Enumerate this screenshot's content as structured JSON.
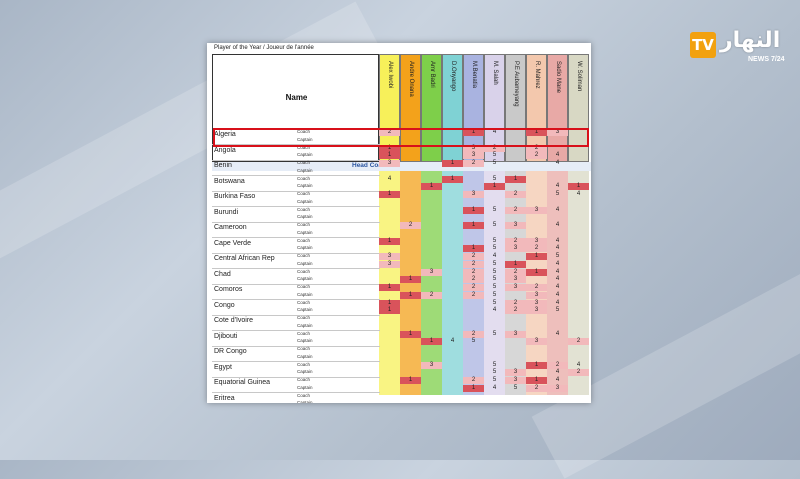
{
  "broadcast": {
    "logo_badge": "TV",
    "logo_arabic": "النهار",
    "logo_sub": "NEWS 7/24"
  },
  "document": {
    "title": "Player of the Year / Joueur de l'année",
    "name_header": "Name",
    "section_label": "Head Coaches",
    "candidates": [
      {
        "name": "Alex Iwobi",
        "color": "#f7f05a"
      },
      {
        "name": "Andre Onana",
        "color": "#f3a21b"
      },
      {
        "name": "Amr Badri",
        "color": "#7ecf4a"
      },
      {
        "name": "D.Onyango",
        "color": "#7fd2d4"
      },
      {
        "name": "M.Benatia",
        "color": "#a9b3e0"
      },
      {
        "name": "M. Salah",
        "color": "#d9d2ea"
      },
      {
        "name": "P.E Aubameyang",
        "color": "#c9c9c9"
      },
      {
        "name": "R. Mahrez",
        "color": "#f3c8ad"
      },
      {
        "name": "Sadio Mane",
        "color": "#e8a9a6"
      },
      {
        "name": "W. Soliman",
        "color": "#d8d8c4"
      }
    ],
    "roles": [
      "Coach",
      "Captain"
    ],
    "countries": [
      {
        "name": "Algeria",
        "cells": [
          [
            "2",
            "",
            "",
            "",
            "1",
            "4",
            "",
            "1",
            "3",
            ""
          ],
          [
            "",
            "",
            "",
            "",
            "",
            "",
            "",
            "",
            "",
            ""
          ]
        ]
      },
      {
        "name": "Angola",
        "cells": [
          [
            "1",
            "",
            "",
            "",
            "3",
            "2",
            "",
            "2",
            "",
            ""
          ],
          [
            "1",
            "",
            "",
            "",
            "3",
            "5",
            "",
            "2",
            "4",
            ""
          ]
        ]
      },
      {
        "name": "Benin",
        "cells": [
          [
            "3",
            "",
            "",
            "1",
            "2",
            "5",
            "",
            "",
            "4",
            ""
          ],
          [
            "",
            "",
            "",
            "",
            "",
            "",
            "",
            "",
            "",
            ""
          ]
        ]
      },
      {
        "name": "Botswana",
        "cells": [
          [
            "4",
            "",
            "",
            "1",
            "",
            "5",
            "1",
            "",
            "",
            ""
          ],
          [
            "",
            "",
            "1",
            "",
            "",
            "1",
            "",
            "",
            "4",
            "1"
          ]
        ]
      },
      {
        "name": "Burkina Faso",
        "cells": [
          [
            "1",
            "",
            "",
            "",
            "3",
            "",
            "2",
            "",
            "5",
            "4"
          ],
          [
            "",
            "",
            "",
            "",
            "",
            "",
            "",
            "",
            "",
            ""
          ]
        ]
      },
      {
        "name": "Burundi",
        "cells": [
          [
            "",
            "",
            "",
            "",
            "1",
            "5",
            "2",
            "3",
            "4",
            ""
          ],
          [
            "",
            "",
            "",
            "",
            "",
            "",
            "",
            "",
            "",
            ""
          ]
        ]
      },
      {
        "name": "Cameroon",
        "cells": [
          [
            "",
            "2",
            "",
            "",
            "1",
            "5",
            "3",
            "",
            "4",
            ""
          ],
          [
            "",
            "",
            "",
            "",
            "",
            "",
            "",
            "",
            "",
            ""
          ]
        ]
      },
      {
        "name": "Cape Verde",
        "cells": [
          [
            "1",
            "",
            "",
            "",
            "",
            "5",
            "2",
            "3",
            "4",
            ""
          ],
          [
            "",
            "",
            "",
            "",
            "1",
            "5",
            "3",
            "2",
            "4",
            ""
          ]
        ]
      },
      {
        "name": "Central African Rep",
        "cells": [
          [
            "3",
            "",
            "",
            "",
            "2",
            "4",
            "",
            "1",
            "5",
            ""
          ],
          [
            "3",
            "",
            "",
            "",
            "2",
            "5",
            "1",
            "",
            "4",
            ""
          ]
        ]
      },
      {
        "name": "Chad",
        "cells": [
          [
            "",
            "",
            "3",
            "",
            "2",
            "5",
            "2",
            "1",
            "4",
            ""
          ],
          [
            "",
            "1",
            "",
            "",
            "2",
            "5",
            "3",
            "",
            "4",
            ""
          ]
        ]
      },
      {
        "name": "Comoros",
        "cells": [
          [
            "1",
            "",
            "",
            "",
            "2",
            "5",
            "3",
            "2",
            "4",
            ""
          ],
          [
            "",
            "1",
            "2",
            "",
            "2",
            "5",
            "",
            "3",
            "4",
            ""
          ]
        ]
      },
      {
        "name": "Congo",
        "cells": [
          [
            "1",
            "",
            "",
            "",
            "",
            "5",
            "2",
            "3",
            "4",
            ""
          ],
          [
            "1",
            "",
            "",
            "",
            "",
            "4",
            "2",
            "3",
            "5",
            ""
          ]
        ]
      },
      {
        "name": "Cote d'Ivoire",
        "cells": [
          [
            "",
            "",
            "",
            "",
            "",
            "",
            "",
            "",
            "",
            ""
          ],
          [
            "",
            "",
            "",
            "",
            "",
            "",
            "",
            "",
            "",
            ""
          ]
        ]
      },
      {
        "name": "Djibouti",
        "cells": [
          [
            "",
            "1",
            "",
            "",
            "2",
            "5",
            "3",
            "",
            "4",
            ""
          ],
          [
            "",
            "",
            "1",
            "4",
            "5",
            "",
            "",
            "3",
            "",
            "2"
          ]
        ]
      },
      {
        "name": "DR Congo",
        "cells": [
          [
            "",
            "",
            "",
            "",
            "",
            "",
            "",
            "",
            "",
            ""
          ],
          [
            "",
            "",
            "",
            "",
            "",
            "",
            "",
            "",
            "",
            ""
          ]
        ]
      },
      {
        "name": "Egypt",
        "cells": [
          [
            "",
            "",
            "3",
            "",
            "",
            "5",
            "",
            "1",
            "2",
            "4"
          ],
          [
            "",
            "",
            "",
            "",
            "",
            "5",
            "3",
            "",
            "4",
            "2"
          ]
        ]
      },
      {
        "name": "Equatorial Guinea",
        "cells": [
          [
            "",
            "1",
            "",
            "",
            "2",
            "5",
            "3",
            "1",
            "4",
            ""
          ],
          [
            "",
            "",
            "",
            "",
            "1",
            "4",
            "5",
            "2",
            "3",
            ""
          ]
        ]
      },
      {
        "name": "Eritrea",
        "cells": [
          [
            "",
            "",
            "",
            "",
            "",
            "",
            "",
            "",
            "",
            ""
          ],
          [
            "",
            "",
            "",
            "",
            "",
            "",
            "",
            "",
            "",
            ""
          ]
        ]
      }
    ]
  }
}
